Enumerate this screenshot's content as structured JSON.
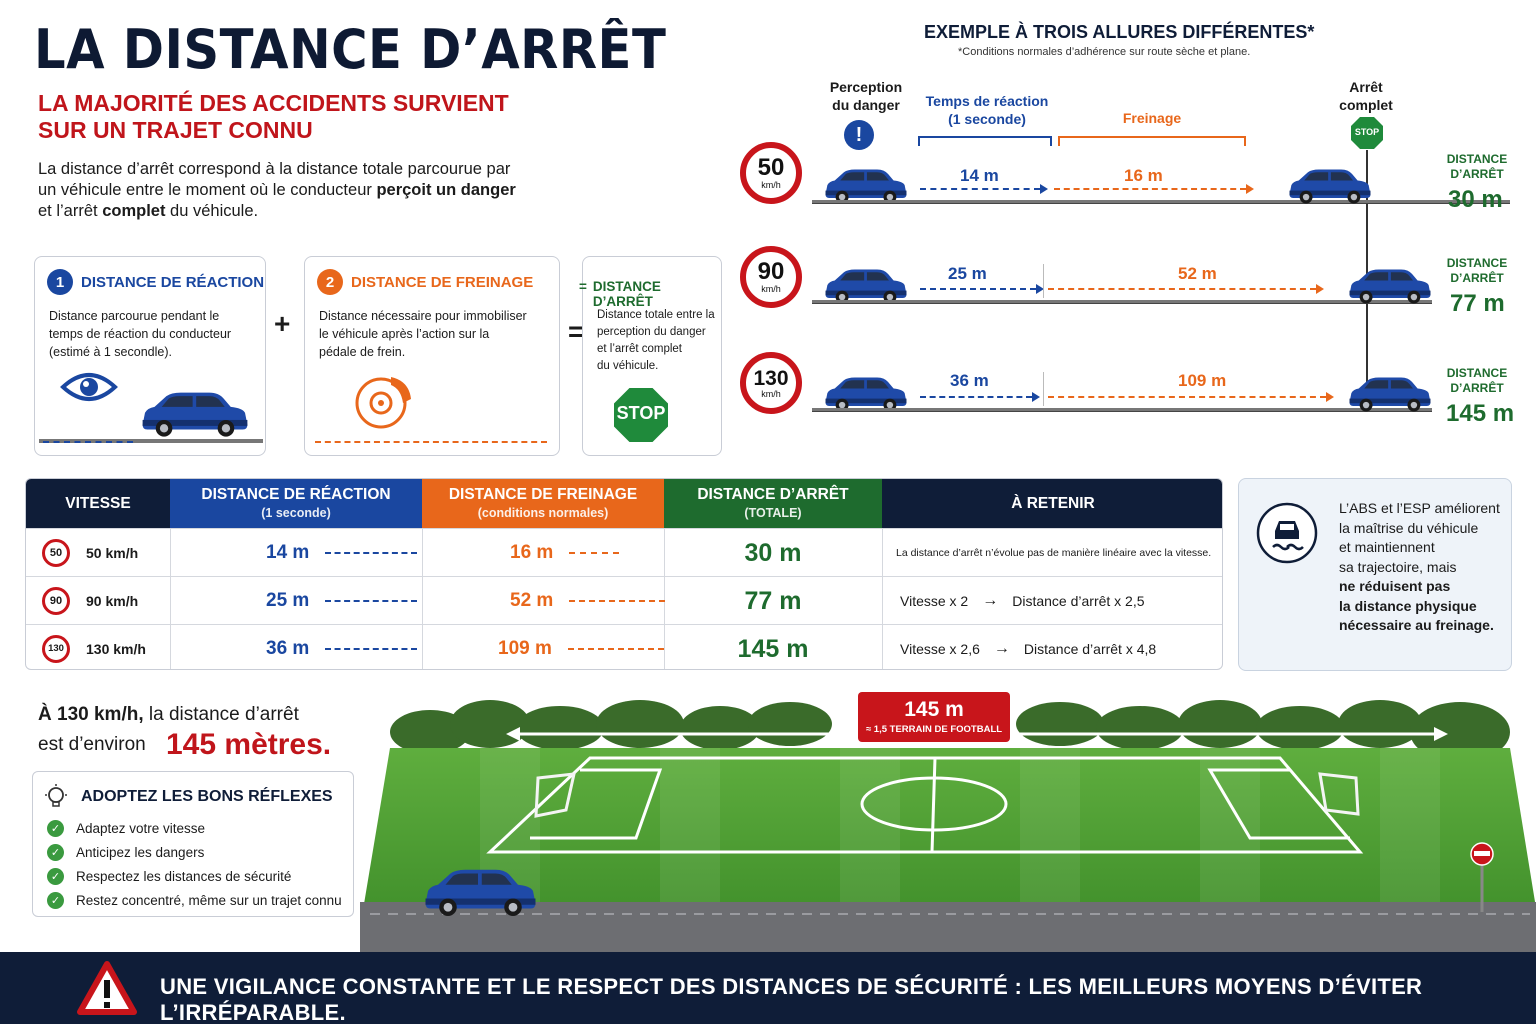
{
  "title": "LA DISTANCE D’ARRÊT",
  "subtitle_line1": "LA MAJORITÉ DES ACCIDENTS SURVIENT",
  "subtitle_line2": "SUR UN TRAJET CONNU",
  "intro": {
    "part1": "La distance d’arrêt correspond à la distance totale parcourue par un véhicule entre le moment où le conducteur ",
    "bold1": "perçoit un danger",
    "part2": " et l’arrêt ",
    "bold2": "complet",
    "part3": " du véhicule."
  },
  "concepts": {
    "reaction": {
      "num": "1",
      "title": "DISTANCE DE RÉACTION",
      "l1": "Distance parcourue pendant le",
      "l2": "temps de réaction du conducteur",
      "l3": "(estimé à 1 secondle).",
      "color": "#1a47a0"
    },
    "plus": "+",
    "braking": {
      "num": "2",
      "title": "DISTANCE DE FREINAGE",
      "l1": "Distance nécessaire pour immobiliser",
      "l2": "le véhicule après l’action sur la",
      "l3": "pédale de frein.",
      "color": "#e8671b"
    },
    "equals": "=",
    "total": {
      "prefix": "=",
      "title": "DISTANCE D’ARRÊT",
      "l1": "Distance totale entre la",
      "l2": "perception du danger",
      "l3": "et l’arrêt complet",
      "l4": "du véhicule.",
      "stop": "STOP",
      "color": "#1e6b2e"
    }
  },
  "example": {
    "title": "EXEMPLE À TROIS ALLURES DIFFÉRENTES*",
    "note": "*Conditions normales d’adhérence sur route sèche et plane.",
    "perception_l1": "Perception",
    "perception_l2": "du danger",
    "reaction_l1": "Temps de réaction",
    "reaction_l2": "(1 seconde)",
    "braking": "Freinage",
    "stop_l1": "Arrêt",
    "stop_l2": "complet",
    "stop_sign": "STOP",
    "alert": "!",
    "unit": "km/h",
    "total_l1": "DISTANCE",
    "total_l2": "D’ARRÊT",
    "rows": [
      {
        "speed": "50",
        "reaction": "14 m",
        "braking": "16 m",
        "total": "30 m"
      },
      {
        "speed": "90",
        "reaction": "25 m",
        "braking": "52 m",
        "total": "77 m"
      },
      {
        "speed": "130",
        "reaction": "36 m",
        "braking": "109 m",
        "total": "145 m"
      }
    ]
  },
  "table": {
    "headers": {
      "speed": "VITESSE",
      "reaction": "DISTANCE DE RÉACTION",
      "reaction_sub": "(1 seconde)",
      "braking": "DISTANCE DE FREINAGE",
      "braking_sub": "(conditions normales)",
      "total": "DISTANCE D’ARRÊT",
      "total_sub": "(TOTALE)",
      "remember": "À RETENIR"
    },
    "rows": [
      {
        "sign": "50",
        "speed": "50 km/h",
        "reaction": "14 m",
        "braking": "16 m",
        "total": "30 m",
        "note": "La distance d’arrêt n’évolue pas de manière linéaire avec la vitesse.",
        "note_a": "",
        "note_b": ""
      },
      {
        "sign": "90",
        "speed": "90 km/h",
        "reaction": "25 m",
        "braking": "52 m",
        "total": "77 m",
        "note": "",
        "note_a": "Vitesse x 2",
        "note_b": "Distance d’arrêt x 2,5"
      },
      {
        "sign": "130",
        "speed": "130 km/h",
        "reaction": "36 m",
        "braking": "109 m",
        "total": "145 m",
        "note": "",
        "note_a": "Vitesse x 2,6",
        "note_b": "Distance d’arrêt x 4,8"
      }
    ],
    "colors": {
      "speed": "#0f1d38",
      "reaction": "#1a47a0",
      "braking": "#e8671b",
      "total": "#1e6b2e",
      "remember": "#0f1d38"
    }
  },
  "abs": {
    "l1": "L’ABS et l’ESP améliorent",
    "l2": "la maîtrise du véhicule",
    "l3": "et maintiennent",
    "l4": "sa trajectoire, mais",
    "l5": "ne réduisent pas",
    "l6": "la distance physique",
    "l7": "nécessaire au freinage."
  },
  "fact": {
    "l1a": "À 130 km/h,",
    "l1b": " la distance d’arrêt",
    "l2": "est d’environ",
    "big": "145 mètres."
  },
  "tips": {
    "title": "ADOPTEZ LES BONS RÉFLEXES",
    "items": [
      "Adaptez votre vitesse",
      "Anticipez les dangers",
      "Respectez les distances de sécurité",
      "Restez concentré, même sur un trajet connu"
    ]
  },
  "field": {
    "distance": "145 m",
    "comparison": "≈ 1,5 TERRAIN DE FOOTBALL"
  },
  "footer": "UNE VIGILANCE CONSTANTE ET LE RESPECT DES DISTANCES DE SÉCURITÉ : LES MEILLEURS MOYENS D’ÉVITER L’IRRÉPARABLE."
}
